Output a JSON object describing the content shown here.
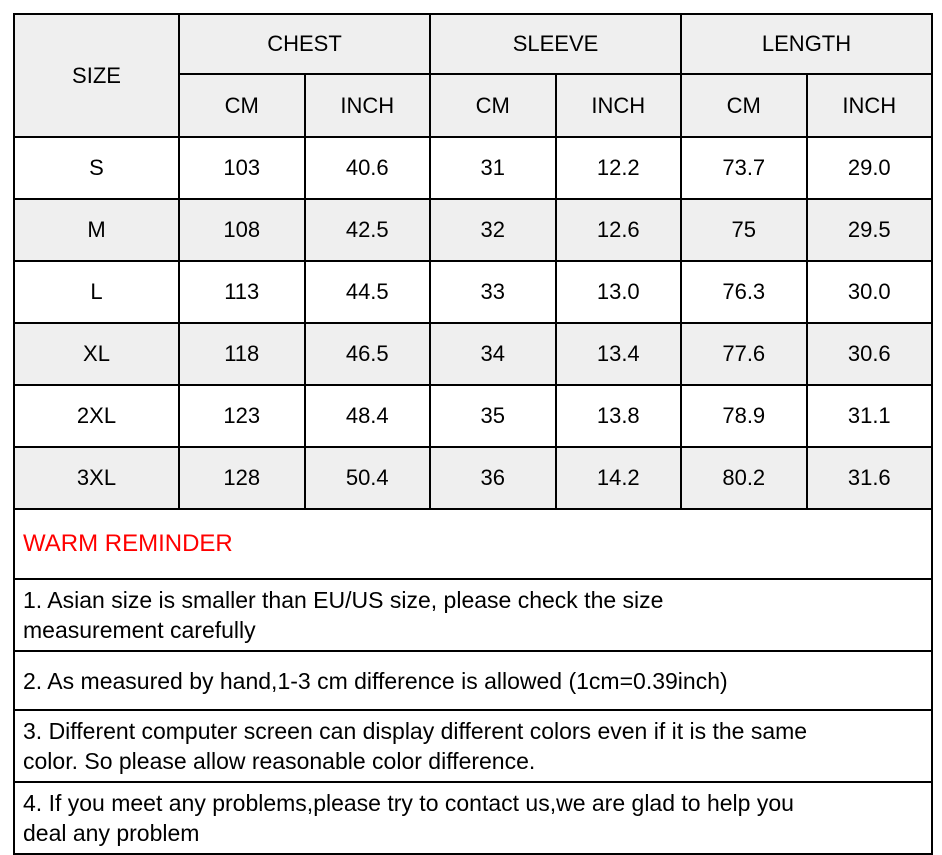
{
  "size_table": {
    "header": {
      "size_label": "SIZE",
      "groups": [
        {
          "label": "CHEST"
        },
        {
          "label": "SLEEVE"
        },
        {
          "label": "LENGTH"
        }
      ],
      "units": [
        "CM",
        "INCH",
        "CM",
        "INCH",
        "CM",
        "INCH"
      ]
    },
    "rows": [
      {
        "size": "S",
        "values": [
          "103",
          "40.6",
          "31",
          "12.2",
          "73.7",
          "29.0"
        ]
      },
      {
        "size": "M",
        "values": [
          "108",
          "42.5",
          "32",
          "12.6",
          "75",
          "29.5"
        ]
      },
      {
        "size": "L",
        "values": [
          "113",
          "44.5",
          "33",
          "13.0",
          "76.3",
          "30.0"
        ]
      },
      {
        "size": "XL",
        "values": [
          "118",
          "46.5",
          "34",
          "13.4",
          "77.6",
          "30.6"
        ]
      },
      {
        "size": "2XL",
        "values": [
          "123",
          "48.4",
          "35",
          "13.8",
          "78.9",
          "31.1"
        ]
      },
      {
        "size": "3XL",
        "values": [
          "128",
          "50.4",
          "36",
          "14.2",
          "80.2",
          "31.6"
        ]
      }
    ]
  },
  "reminder": {
    "title": "WARM REMINDER",
    "notes": [
      "1. Asian size is smaller than EU/US size, please check the size\nmeasurement carefully",
      "2. As measured by hand,1-3 cm difference is allowed (1cm=0.39inch)",
      "3. Different computer screen can display different colors even if it is the same\ncolor. So please allow reasonable color difference.",
      "4. If you meet any problems,please try to contact us,we are glad to help you\ndeal any problem"
    ]
  },
  "colors": {
    "header_bg": "#efefef",
    "row_alt_bg": "#efefef",
    "border": "#000000",
    "reminder_title": "#ff0000",
    "text": "#000000",
    "background": "#ffffff"
  }
}
